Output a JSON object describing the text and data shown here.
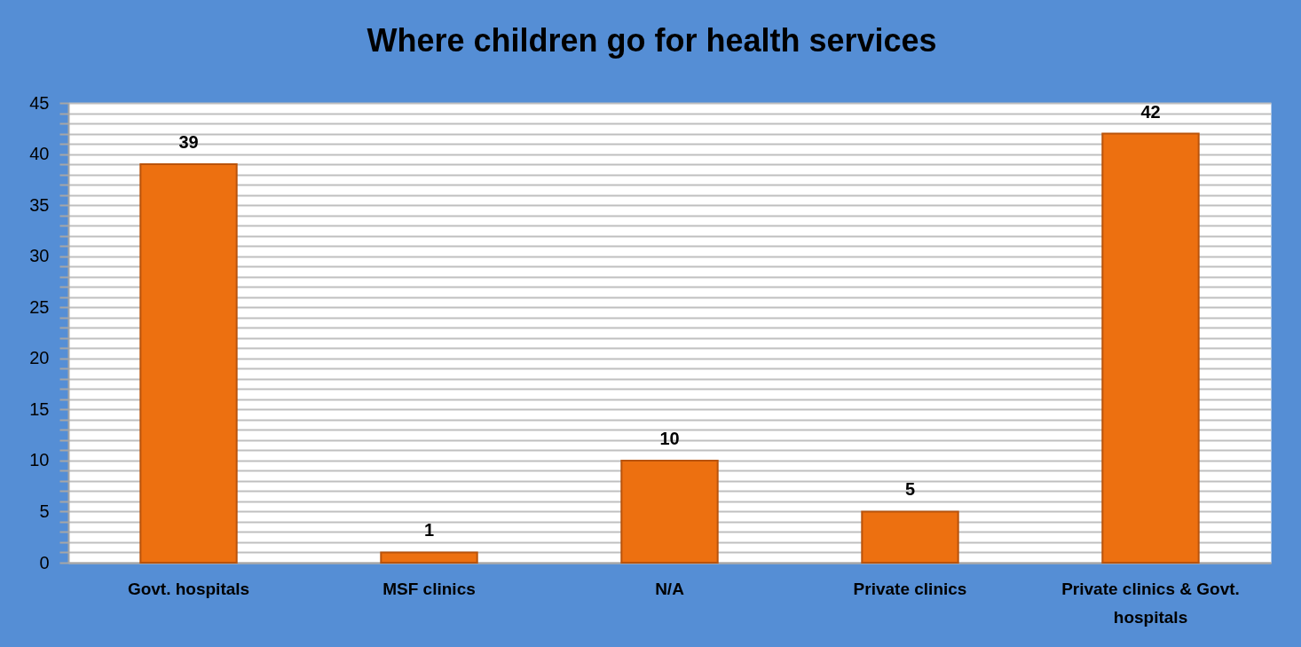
{
  "chart_data": {
    "type": "bar",
    "title": "Where children go for health services",
    "categories": [
      "Govt. hospitals",
      "MSF clinics",
      "N/A",
      "Private clinics",
      "Private clinics & Govt. hospitals"
    ],
    "values": [
      39,
      1,
      10,
      5,
      42
    ],
    "color": "#ed7010",
    "ylim": [
      0,
      45
    ],
    "yticks": [
      0,
      {
        "value": 1,
        "label": null
      },
      {
        "value": 2,
        "label": null
      },
      {
        "value": 3,
        "label": null
      },
      {
        "value": 4,
        "label": null
      },
      5,
      {
        "value": 6,
        "label": null
      },
      {
        "value": 7,
        "label": null
      },
      {
        "value": 8,
        "label": null
      },
      {
        "value": 9,
        "label": null
      },
      10,
      {
        "value": 11,
        "label": null
      },
      {
        "value": 12,
        "label": null
      },
      {
        "value": 13,
        "label": null
      },
      {
        "value": 14,
        "label": null
      },
      15,
      {
        "value": 16,
        "label": null
      },
      {
        "value": 17,
        "label": null
      },
      {
        "value": 18,
        "label": null
      },
      {
        "value": 19,
        "label": null
      },
      20,
      {
        "value": 21,
        "label": null
      },
      {
        "value": 22,
        "label": null
      },
      {
        "value": 23,
        "label": null
      },
      {
        "value": 24,
        "label": null
      },
      25,
      {
        "value": 26,
        "label": null
      },
      {
        "value": 27,
        "label": null
      },
      {
        "value": 28,
        "label": null
      },
      {
        "value": 29,
        "label": null
      },
      30,
      {
        "value": 31,
        "label": null
      },
      {
        "value": 32,
        "label": null
      },
      {
        "value": 33,
        "label": null
      },
      {
        "value": 34,
        "label": null
      },
      35,
      {
        "value": 36,
        "label": null
      },
      {
        "value": 37,
        "label": null
      },
      {
        "value": 38,
        "label": null
      },
      {
        "value": 39,
        "label": null
      },
      40,
      {
        "value": 41,
        "label": null
      },
      {
        "value": 42,
        "label": null
      },
      {
        "value": 43,
        "label": null
      },
      {
        "value": 44,
        "label": null
      },
      45
    ],
    "grid": "y",
    "data_labels": true
  }
}
